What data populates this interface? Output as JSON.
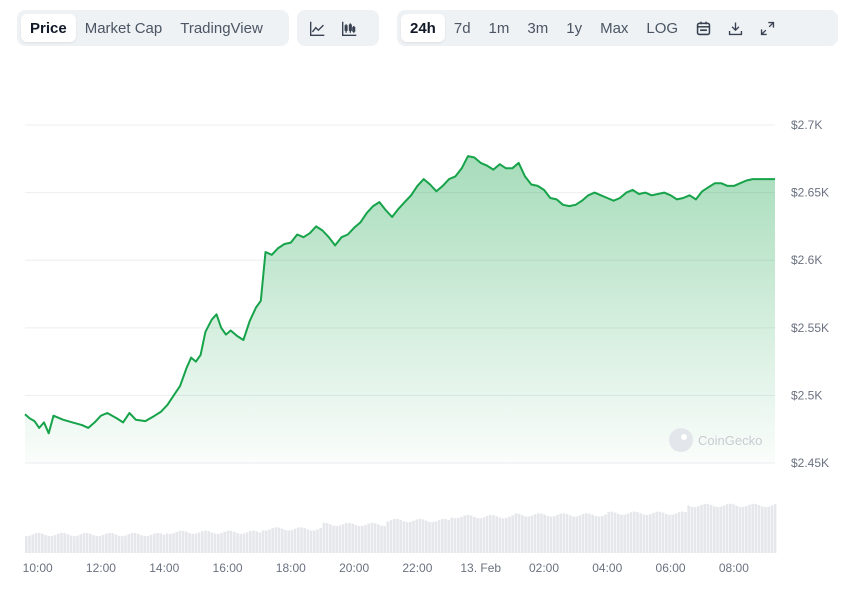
{
  "toolbar": {
    "view_tabs": [
      {
        "label": "Price",
        "active": true
      },
      {
        "label": "Market Cap",
        "active": false
      },
      {
        "label": "TradingView",
        "active": false
      }
    ],
    "chart_style_icons": [
      "line-chart-icon",
      "candlestick-chart-icon"
    ],
    "ranges": [
      {
        "label": "24h",
        "active": true
      },
      {
        "label": "7d",
        "active": false
      },
      {
        "label": "1m",
        "active": false
      },
      {
        "label": "3m",
        "active": false
      },
      {
        "label": "1y",
        "active": false
      },
      {
        "label": "Max",
        "active": false
      },
      {
        "label": "LOG",
        "active": false
      }
    ],
    "action_icons": [
      "calendar-icon",
      "download-icon",
      "expand-icon"
    ]
  },
  "watermark": "CoinGecko",
  "colors": {
    "line": "#16a34a",
    "fill": "#16a34a",
    "grid": "#eceef1",
    "volume": "#e5e7eb"
  },
  "chart_data": {
    "type": "area",
    "ylim": [
      2450,
      2720
    ],
    "yticks": [
      2450,
      2500,
      2550,
      2600,
      2650,
      2700
    ],
    "ytick_labels": [
      "$2.45K",
      "$2.5K",
      "$2.55K",
      "$2.6K",
      "$2.65K",
      "$2.7K"
    ],
    "xticks": [
      {
        "t": 10,
        "label": "10:00"
      },
      {
        "t": 12,
        "label": "12:00"
      },
      {
        "t": 14,
        "label": "14:00"
      },
      {
        "t": 16,
        "label": "16:00"
      },
      {
        "t": 18,
        "label": "18:00"
      },
      {
        "t": 20,
        "label": "20:00"
      },
      {
        "t": 22,
        "label": "22:00"
      },
      {
        "t": 24,
        "label": "13. Feb"
      },
      {
        "t": 26,
        "label": "02:00"
      },
      {
        "t": 28,
        "label": "04:00"
      },
      {
        "t": 30,
        "label": "06:00"
      },
      {
        "t": 32,
        "label": "08:00"
      }
    ],
    "xlim": [
      9.6,
      33.3
    ],
    "price_points": [
      [
        9.6,
        2486
      ],
      [
        9.75,
        2483
      ],
      [
        9.9,
        2481
      ],
      [
        10.05,
        2476
      ],
      [
        10.2,
        2480
      ],
      [
        10.35,
        2472
      ],
      [
        10.5,
        2485
      ],
      [
        10.8,
        2482
      ],
      [
        11.1,
        2480
      ],
      [
        11.4,
        2478
      ],
      [
        11.6,
        2476
      ],
      [
        11.8,
        2480
      ],
      [
        12.0,
        2485
      ],
      [
        12.2,
        2487
      ],
      [
        12.5,
        2483
      ],
      [
        12.7,
        2480
      ],
      [
        12.9,
        2487
      ],
      [
        13.1,
        2482
      ],
      [
        13.4,
        2481
      ],
      [
        13.7,
        2485
      ],
      [
        13.9,
        2488
      ],
      [
        14.1,
        2493
      ],
      [
        14.3,
        2500
      ],
      [
        14.5,
        2507
      ],
      [
        14.7,
        2520
      ],
      [
        14.85,
        2528
      ],
      [
        15.0,
        2525
      ],
      [
        15.15,
        2530
      ],
      [
        15.3,
        2547
      ],
      [
        15.5,
        2556
      ],
      [
        15.65,
        2560
      ],
      [
        15.8,
        2550
      ],
      [
        15.95,
        2545
      ],
      [
        16.1,
        2548
      ],
      [
        16.3,
        2544
      ],
      [
        16.5,
        2541
      ],
      [
        16.7,
        2555
      ],
      [
        16.9,
        2565
      ],
      [
        17.05,
        2570
      ],
      [
        17.2,
        2606
      ],
      [
        17.4,
        2604
      ],
      [
        17.6,
        2609
      ],
      [
        17.8,
        2612
      ],
      [
        18.0,
        2613
      ],
      [
        18.2,
        2619
      ],
      [
        18.4,
        2617
      ],
      [
        18.6,
        2620
      ],
      [
        18.8,
        2625
      ],
      [
        19.0,
        2622
      ],
      [
        19.2,
        2617
      ],
      [
        19.4,
        2611
      ],
      [
        19.6,
        2617
      ],
      [
        19.8,
        2619
      ],
      [
        20.0,
        2624
      ],
      [
        20.2,
        2628
      ],
      [
        20.4,
        2635
      ],
      [
        20.6,
        2640
      ],
      [
        20.8,
        2643
      ],
      [
        21.0,
        2637
      ],
      [
        21.2,
        2632
      ],
      [
        21.4,
        2638
      ],
      [
        21.6,
        2643
      ],
      [
        21.8,
        2648
      ],
      [
        22.0,
        2655
      ],
      [
        22.2,
        2660
      ],
      [
        22.4,
        2656
      ],
      [
        22.6,
        2651
      ],
      [
        22.8,
        2655
      ],
      [
        23.0,
        2660
      ],
      [
        23.2,
        2662
      ],
      [
        23.4,
        2668
      ],
      [
        23.6,
        2677
      ],
      [
        23.8,
        2676
      ],
      [
        24.0,
        2672
      ],
      [
        24.2,
        2670
      ],
      [
        24.4,
        2667
      ],
      [
        24.6,
        2671
      ],
      [
        24.8,
        2668
      ],
      [
        25.0,
        2668
      ],
      [
        25.2,
        2672
      ],
      [
        25.4,
        2662
      ],
      [
        25.6,
        2656
      ],
      [
        25.8,
        2655
      ],
      [
        26.0,
        2652
      ],
      [
        26.2,
        2646
      ],
      [
        26.4,
        2645
      ],
      [
        26.6,
        2641
      ],
      [
        26.8,
        2640
      ],
      [
        27.0,
        2641
      ],
      [
        27.2,
        2644
      ],
      [
        27.4,
        2648
      ],
      [
        27.6,
        2650
      ],
      [
        27.8,
        2648
      ],
      [
        28.0,
        2646
      ],
      [
        28.2,
        2644
      ],
      [
        28.4,
        2646
      ],
      [
        28.6,
        2650
      ],
      [
        28.8,
        2652
      ],
      [
        29.0,
        2649
      ],
      [
        29.2,
        2650
      ],
      [
        29.4,
        2648
      ],
      [
        29.6,
        2649
      ],
      [
        29.8,
        2650
      ],
      [
        30.0,
        2648
      ],
      [
        30.2,
        2645
      ],
      [
        30.4,
        2646
      ],
      [
        30.6,
        2648
      ],
      [
        30.8,
        2645
      ],
      [
        31.0,
        2651
      ],
      [
        31.2,
        2654
      ],
      [
        31.4,
        2657
      ],
      [
        31.6,
        2657
      ],
      [
        31.8,
        2655
      ],
      [
        32.0,
        2655
      ],
      [
        32.2,
        2657
      ],
      [
        32.4,
        2659
      ],
      [
        32.6,
        2660
      ],
      [
        32.8,
        2660
      ],
      [
        33.0,
        2660
      ],
      [
        33.3,
        2660
      ]
    ],
    "volume_note": "relative volume bars along bottom, increasing left to right",
    "volume_series": [
      {
        "start": 9.6,
        "end": 14.0,
        "level": 0.3
      },
      {
        "start": 14.0,
        "end": 17.0,
        "level": 0.34
      },
      {
        "start": 17.0,
        "end": 19.0,
        "level": 0.4
      },
      {
        "start": 19.0,
        "end": 21.0,
        "level": 0.48
      },
      {
        "start": 21.0,
        "end": 23.0,
        "level": 0.55
      },
      {
        "start": 23.0,
        "end": 25.0,
        "level": 0.62
      },
      {
        "start": 25.0,
        "end": 28.0,
        "level": 0.65
      },
      {
        "start": 28.0,
        "end": 30.5,
        "level": 0.68
      },
      {
        "start": 30.5,
        "end": 33.3,
        "level": 0.82
      }
    ]
  }
}
